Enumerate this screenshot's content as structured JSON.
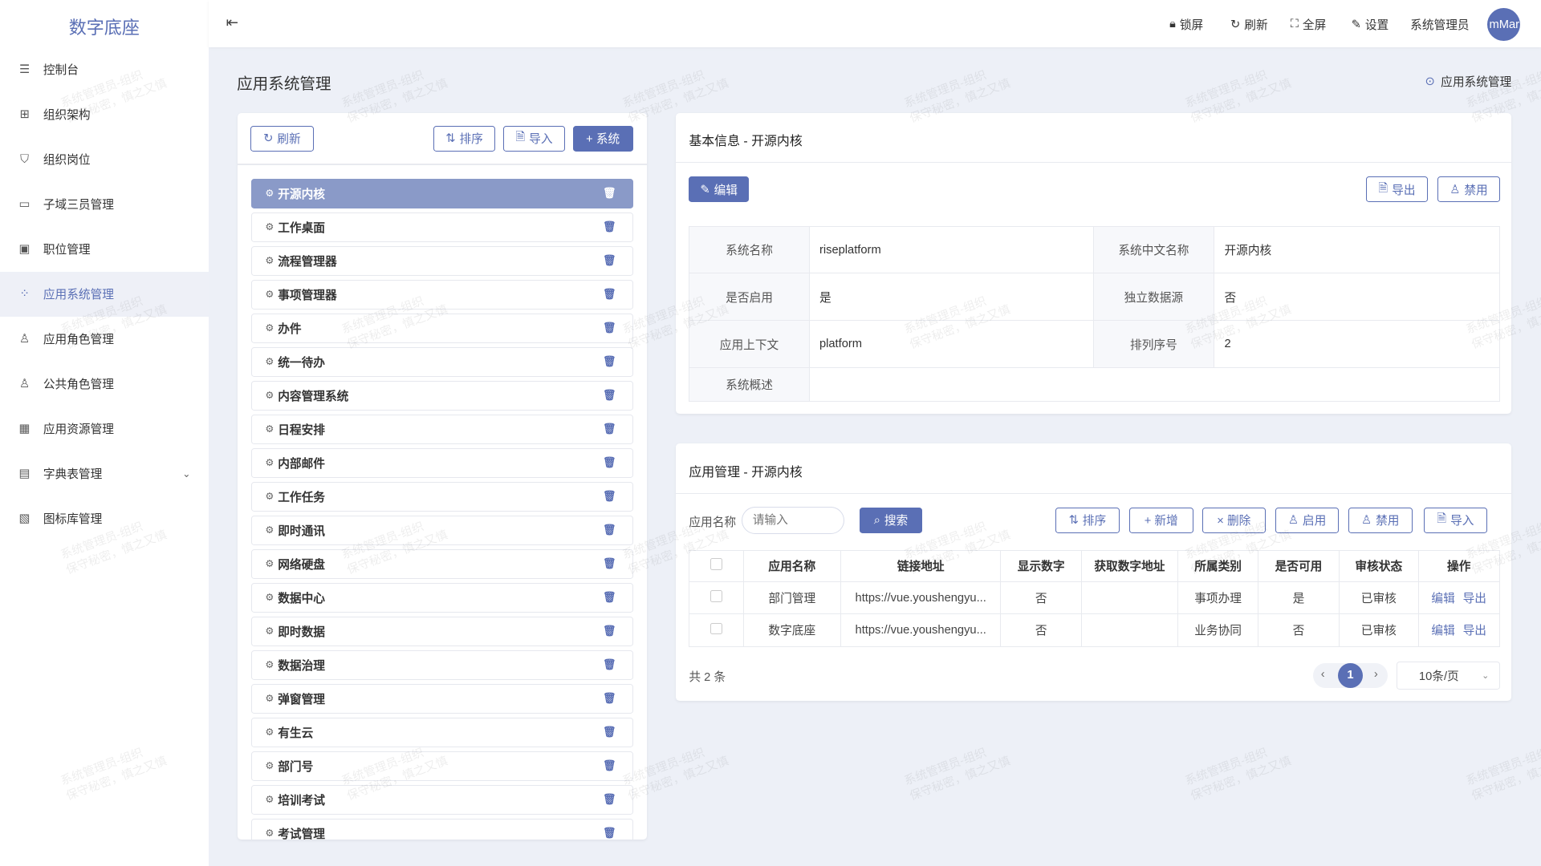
{
  "app": {
    "logo": "数字底座"
  },
  "sidebar": {
    "items": [
      {
        "label": "控制台",
        "icon": "sliders-icon"
      },
      {
        "label": "组织架构",
        "icon": "org-tree-icon"
      },
      {
        "label": "组织岗位",
        "icon": "shield-user-icon"
      },
      {
        "label": "子域三员管理",
        "icon": "window-icon"
      },
      {
        "label": "职位管理",
        "icon": "id-card-icon"
      },
      {
        "label": "应用系统管理",
        "icon": "apps-icon",
        "active": true
      },
      {
        "label": "应用角色管理",
        "icon": "user-role-icon"
      },
      {
        "label": "公共角色管理",
        "icon": "user-group-icon"
      },
      {
        "label": "应用资源管理",
        "icon": "grid-icon"
      },
      {
        "label": "字典表管理",
        "icon": "book-icon",
        "expandable": true
      },
      {
        "label": "图标库管理",
        "icon": "image-icon"
      }
    ]
  },
  "header": {
    "lock": "锁屏",
    "refresh": "刷新",
    "fullscreen": "全屏",
    "settings": "设置",
    "user": "系统管理员",
    "avatar": "mMar"
  },
  "page": {
    "title": "应用系统管理",
    "breadcrumb": "应用系统管理"
  },
  "left_panel": {
    "refresh": "刷新",
    "sort": "排序",
    "import": "导入",
    "add_system": "+ 系统",
    "items": [
      "开源内核",
      "工作桌面",
      "流程管理器",
      "事项管理器",
      "办件",
      "统一待办",
      "内容管理系统",
      "日程安排",
      "内部邮件",
      "工作任务",
      "即时通讯",
      "网络硬盘",
      "数据中心",
      "即时数据",
      "数据治理",
      "弹窗管理",
      "有生云",
      "部门号",
      "培训考试",
      "考试管理"
    ],
    "selected": "开源内核"
  },
  "basic_info": {
    "title": "基本信息 - 开源内核",
    "edit": "编辑",
    "export": "导出",
    "disable": "禁用",
    "fields": {
      "name_label": "系统名称",
      "name": "riseplatform",
      "cn_name_label": "系统中文名称",
      "cn_name": "开源内核",
      "enabled_label": "是否启用",
      "enabled": "是",
      "datasource_label": "独立数据源",
      "datasource": "否",
      "context_label": "应用上下文",
      "context": "platform",
      "order_label": "排列序号",
      "order": "2",
      "desc_label": "系统概述",
      "desc": ""
    }
  },
  "app_mgmt": {
    "title": "应用管理 - 开源内核",
    "search_label": "应用名称",
    "search_placeholder": "请输入",
    "search": "搜索",
    "sort": "排序",
    "add": "+ 新增",
    "delete": "× 删除",
    "enable": "启用",
    "disable": "禁用",
    "import": "导入",
    "columns": [
      "应用名称",
      "链接地址",
      "显示数字",
      "获取数字地址",
      "所属类别",
      "是否可用",
      "审核状态",
      "操作"
    ],
    "rows": [
      {
        "name": "部门管理",
        "url": "https://vue.youshengyu...",
        "show_num": "否",
        "num_url": "",
        "category": "事项办理",
        "available": "是",
        "status": "已审核",
        "edit": "编辑",
        "export": "导出"
      },
      {
        "name": "数字底座",
        "url": "https://vue.youshengyu...",
        "show_num": "否",
        "num_url": "",
        "category": "业务协同",
        "available": "否",
        "status": "已审核",
        "edit": "编辑",
        "export": "导出"
      }
    ],
    "total": "共 2 条",
    "page": "1",
    "page_size": "10条/页"
  },
  "watermark": {
    "line1": "系统管理员-组织",
    "line2": "保守秘密，慎之又慎"
  },
  "colors": {
    "accent": "#5a6fb5",
    "active_item": "#8a9ac8",
    "background": "#edf0f7"
  }
}
